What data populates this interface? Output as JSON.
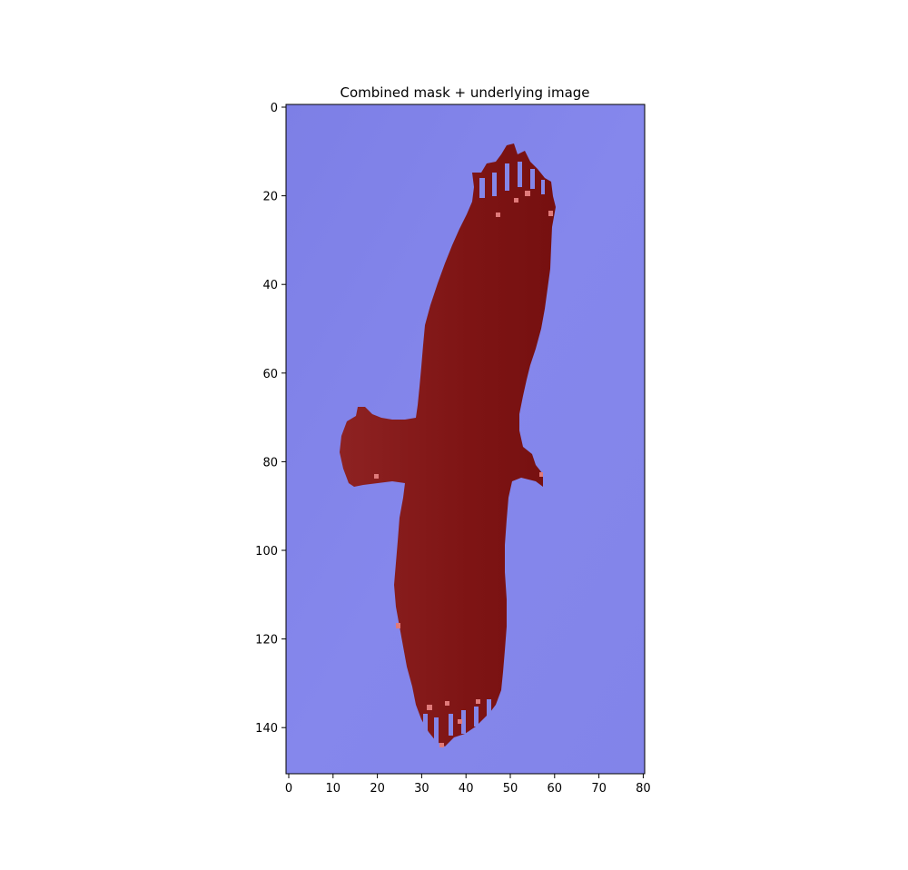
{
  "title": "Combined mask + underlying image",
  "x_ticks": [
    "0",
    "10",
    "20",
    "30",
    "40",
    "50",
    "60",
    "70",
    "80"
  ],
  "y_ticks": [
    "0",
    "20",
    "40",
    "60",
    "80",
    "100",
    "120",
    "140"
  ],
  "colors": {
    "background_overlay": "#8486e8",
    "mask_overlay": "#7d1313",
    "highlight": "#e07a7a"
  }
}
